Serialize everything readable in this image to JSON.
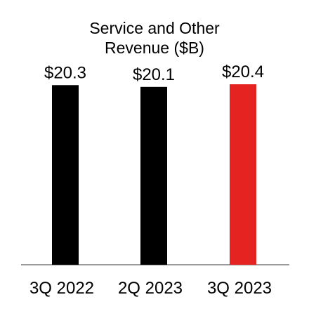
{
  "chart_data": {
    "type": "bar",
    "title_lines": [
      "Service and Other",
      "Revenue ($B)"
    ],
    "categories": [
      "3Q 2022",
      "2Q 2023",
      "3Q 2023"
    ],
    "values": [
      20.3,
      20.1,
      20.4
    ],
    "value_labels": [
      "$20.3",
      "$20.1",
      "$20.4"
    ],
    "bar_colors": [
      "#000000",
      "#000000",
      "#e52421"
    ],
    "axis_color": "#9a9a9a",
    "ylim": [
      0,
      20.4
    ],
    "grid": false,
    "legend": "none"
  }
}
